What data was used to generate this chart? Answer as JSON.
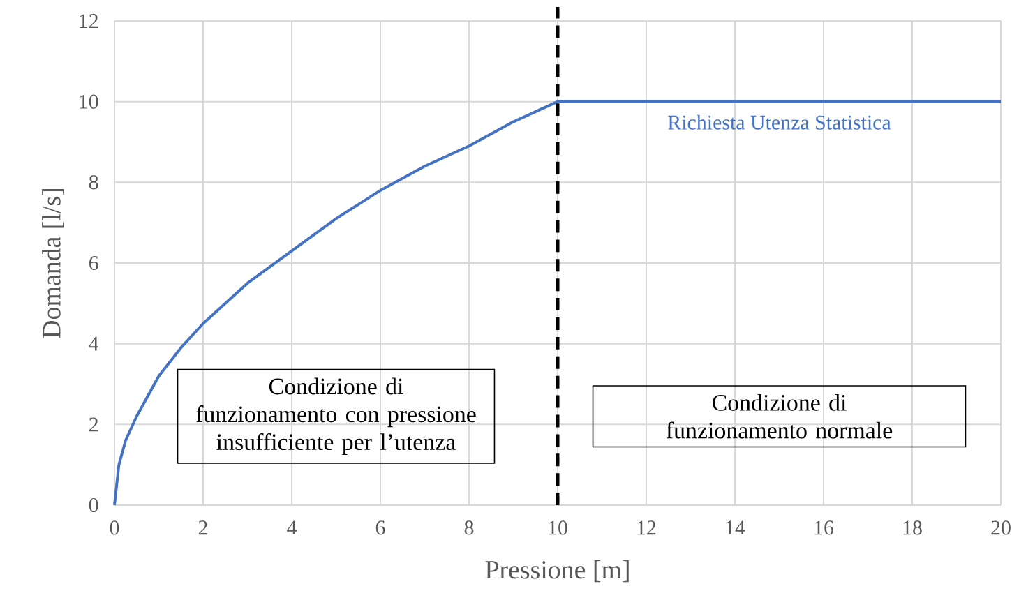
{
  "chart_data": {
    "type": "line",
    "xlabel": "Pressione [m]",
    "ylabel": "Domanda [l/s]",
    "series": [
      {
        "name": "Richiesta Utenza Statistica",
        "color": "#4472c4",
        "x": [
          0,
          0.1,
          0.25,
          0.5,
          1,
          1.5,
          2,
          3,
          4,
          5,
          6,
          7,
          8,
          9,
          10,
          20
        ],
        "values": [
          0,
          1.0,
          1.6,
          2.2,
          3.2,
          3.9,
          4.5,
          5.5,
          6.3,
          7.1,
          7.8,
          8.4,
          8.9,
          9.5,
          10,
          10
        ]
      }
    ],
    "xlim": [
      0,
      20
    ],
    "xticks": [
      0,
      2,
      4,
      6,
      8,
      10,
      12,
      14,
      16,
      18,
      20
    ],
    "ylim": [
      0,
      12
    ],
    "yticks": [
      0,
      2,
      4,
      6,
      8,
      10,
      12
    ],
    "grid": true,
    "legend": false,
    "marker": "none",
    "line_style": "solid",
    "ref_lines": [
      {
        "axis": "x",
        "value": 10,
        "color": "#000000",
        "line_style": "dashed"
      }
    ],
    "annotations": [
      "Condizione di funzionamento con pressione insufficiente per l’utenza",
      "Condizione di funzionamento normale"
    ]
  }
}
